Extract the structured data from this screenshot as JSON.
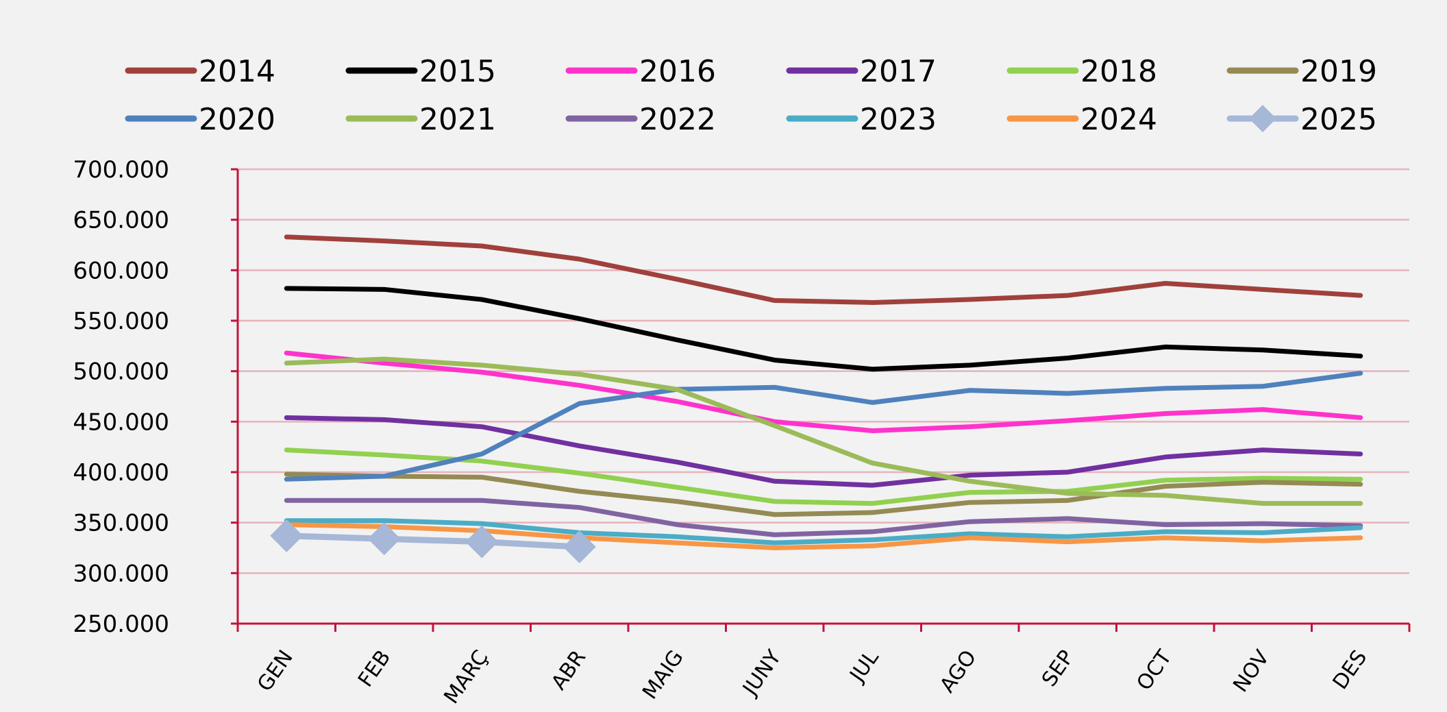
{
  "chart_data": {
    "type": "line",
    "categories": [
      "GEN",
      "FEB",
      "MARÇ",
      "ABR",
      "MAIG",
      "JUNY",
      "JUL",
      "AGO",
      "SEP",
      "OCT",
      "NOV",
      "DES"
    ],
    "ylim": [
      250000,
      700000
    ],
    "yticks": [
      {
        "value": 250000,
        "label": "250.000"
      },
      {
        "value": 300000,
        "label": "300.000"
      },
      {
        "value": 350000,
        "label": "350.000"
      },
      {
        "value": 400000,
        "label": "400.000"
      },
      {
        "value": 450000,
        "label": "450.000"
      },
      {
        "value": 500000,
        "label": "500.000"
      },
      {
        "value": 550000,
        "label": "550.000"
      },
      {
        "value": 600000,
        "label": "600.000"
      },
      {
        "value": 650000,
        "label": "650.000"
      },
      {
        "value": 700000,
        "label": "700.000"
      }
    ],
    "grid": true,
    "legend_position": "top",
    "axis_color": "#c0143c",
    "grid_color": "#e6b3bb",
    "series": [
      {
        "name": "2014",
        "color": "#a0403c",
        "marker": "none",
        "values": [
          633000,
          629000,
          624000,
          611000,
          591000,
          570000,
          568000,
          571000,
          575000,
          587000,
          581000,
          575000
        ]
      },
      {
        "name": "2015",
        "color": "#000000",
        "marker": "none",
        "values": [
          582000,
          581000,
          571000,
          552000,
          531000,
          511000,
          502000,
          506000,
          513000,
          524000,
          521000,
          515000
        ]
      },
      {
        "name": "2016",
        "color": "#ff33cc",
        "marker": "none",
        "values": [
          518000,
          508000,
          499000,
          486000,
          470000,
          450000,
          441000,
          445000,
          451000,
          458000,
          462000,
          454000
        ]
      },
      {
        "name": "2017",
        "color": "#7030a0",
        "marker": "none",
        "values": [
          454000,
          452000,
          445000,
          426000,
          410000,
          391000,
          387000,
          397000,
          400000,
          415000,
          422000,
          418000
        ]
      },
      {
        "name": "2018",
        "color": "#92d050",
        "marker": "none",
        "values": [
          422000,
          417000,
          411000,
          399000,
          385000,
          371000,
          369000,
          380000,
          381000,
          392000,
          394000,
          393000
        ]
      },
      {
        "name": "2019",
        "color": "#948a54",
        "marker": "none",
        "values": [
          398000,
          396000,
          395000,
          381000,
          371000,
          358000,
          360000,
          370000,
          372000,
          386000,
          390000,
          388000
        ]
      },
      {
        "name": "2020",
        "color": "#4f81bd",
        "marker": "none",
        "values": [
          393000,
          396000,
          418000,
          468000,
          482000,
          484000,
          469000,
          481000,
          478000,
          483000,
          485000,
          498000
        ]
      },
      {
        "name": "2021",
        "color": "#9bbb59",
        "marker": "none",
        "values": [
          508000,
          512000,
          506000,
          497000,
          482000,
          446000,
          409000,
          391000,
          379000,
          377000,
          369000,
          369000
        ]
      },
      {
        "name": "2022",
        "color": "#8064a2",
        "marker": "none",
        "values": [
          372000,
          372000,
          372000,
          365000,
          348000,
          338000,
          341000,
          351000,
          354000,
          348000,
          349000,
          347000
        ]
      },
      {
        "name": "2023",
        "color": "#4bacc6",
        "marker": "none",
        "values": [
          352000,
          352000,
          349000,
          340000,
          336000,
          330000,
          333000,
          339000,
          336000,
          341000,
          340000,
          345000
        ]
      },
      {
        "name": "2024",
        "color": "#f79646",
        "marker": "none",
        "values": [
          348000,
          346000,
          342000,
          335000,
          330000,
          325000,
          327000,
          335000,
          331000,
          335000,
          332000,
          335000
        ]
      },
      {
        "name": "2025",
        "color": "#a6b7d8",
        "marker": "diamond",
        "values": [
          337000,
          334000,
          331000,
          326000,
          null,
          null,
          null,
          null,
          null,
          null,
          null,
          null
        ]
      }
    ]
  }
}
